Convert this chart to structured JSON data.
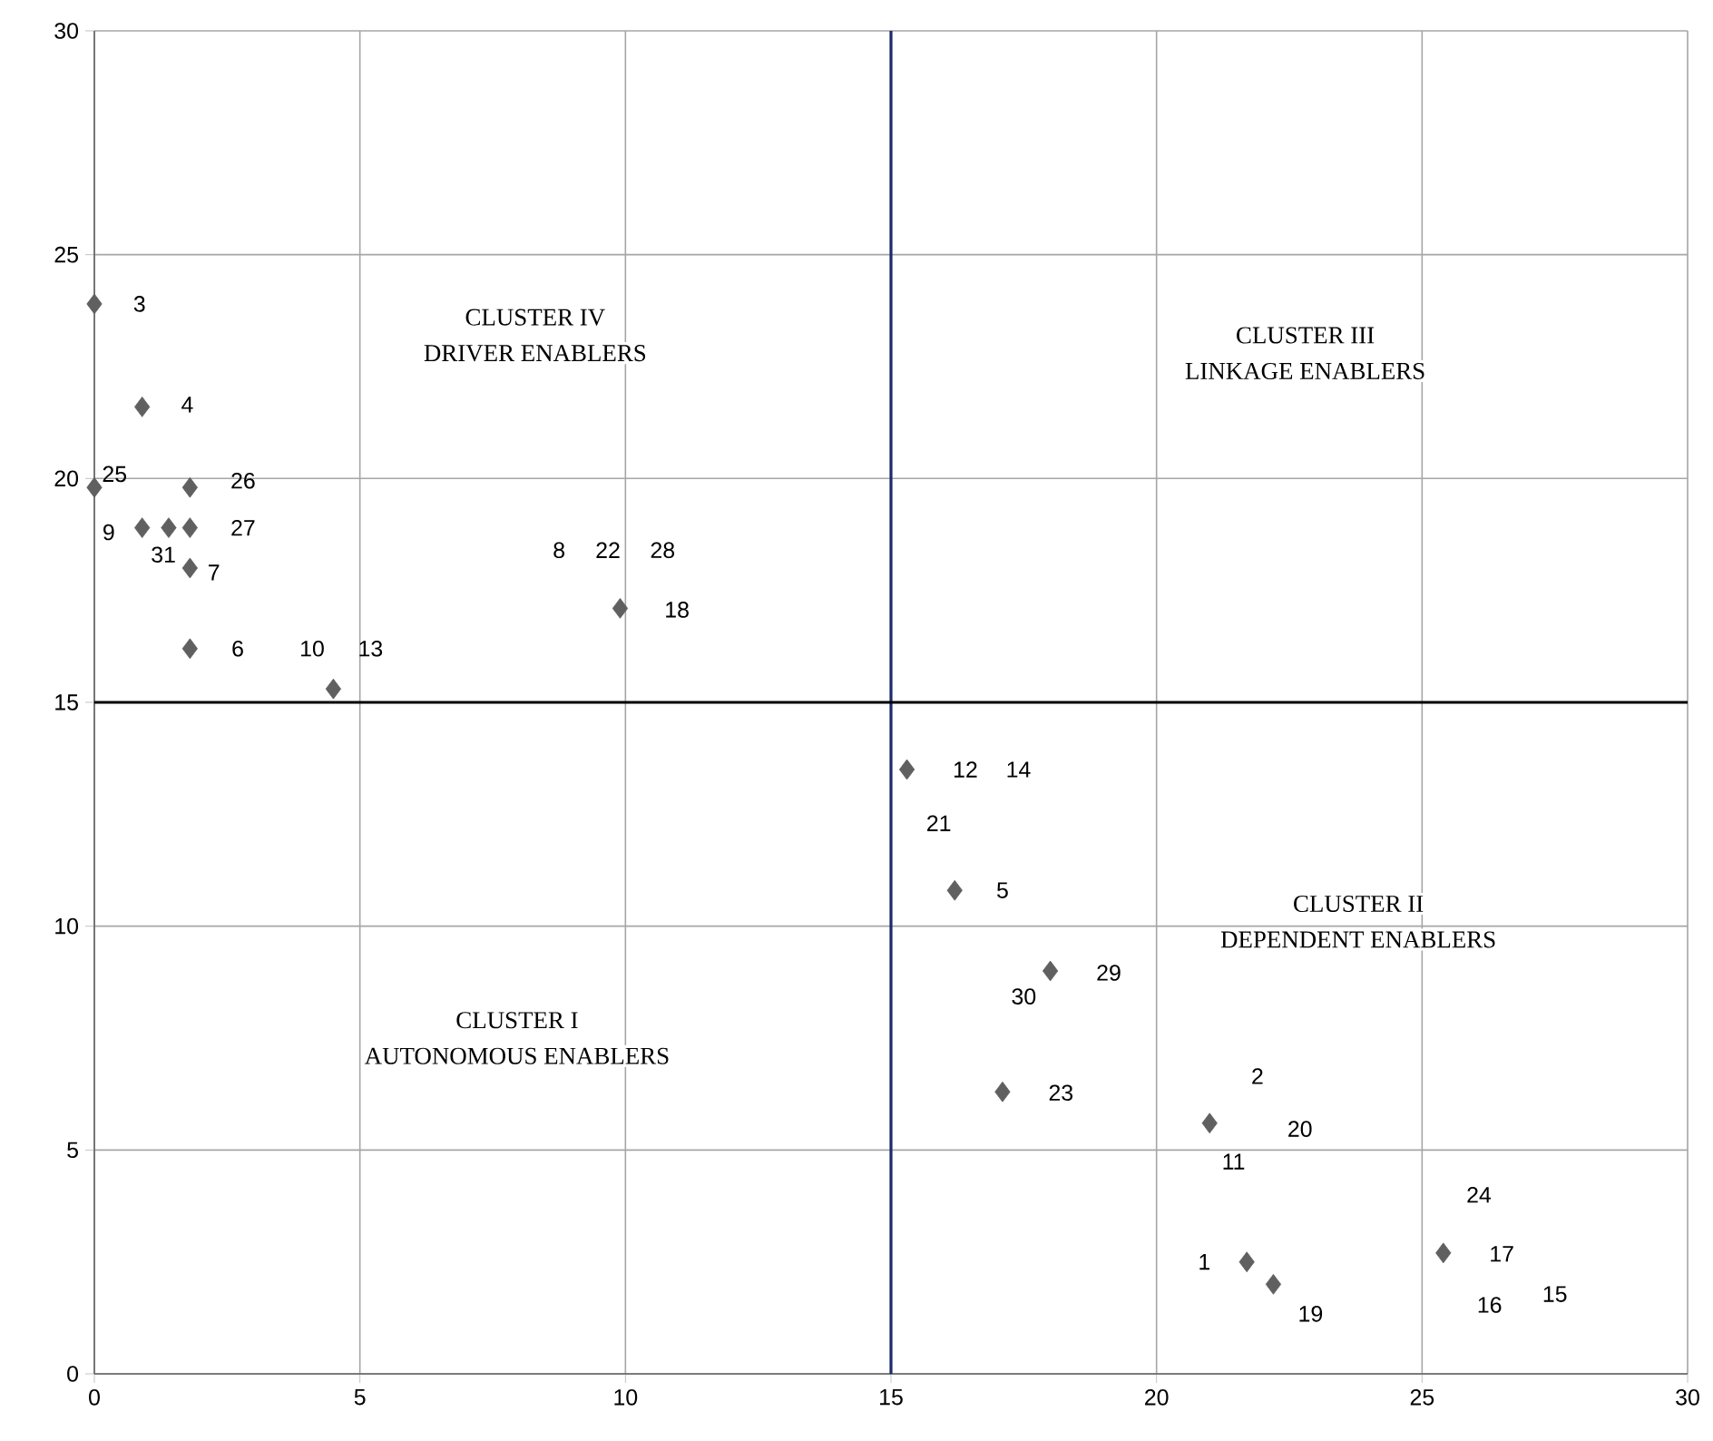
{
  "chart_data": {
    "type": "scatter",
    "x": [
      0,
      0.9,
      0,
      1.8,
      0.9,
      1.4,
      1.8,
      1.8,
      1.8,
      4.5,
      9.9,
      15.3,
      16.2,
      18.0,
      17.1,
      21.0,
      25.4,
      21.7,
      22.2
    ],
    "series": [
      {
        "color": "#606060",
        "values": [
          23.9,
          21.6,
          19.8,
          19.8,
          18.9,
          18.9,
          18.9,
          18.0,
          16.2,
          15.3,
          17.1,
          13.5,
          10.8,
          9.0,
          6.3,
          5.6,
          2.7,
          2.5,
          2.0
        ]
      }
    ],
    "marker": "diamond",
    "xlim": [
      0,
      30
    ],
    "ylim": [
      0,
      30
    ],
    "xticks": [
      0,
      5,
      10,
      15,
      20,
      25,
      30
    ],
    "yticks": [
      0,
      5,
      10,
      15,
      20,
      25,
      30
    ],
    "grid": true,
    "ref_lines": [
      {
        "axis": "x",
        "value": 15,
        "color": "#1a2a6c"
      },
      {
        "axis": "y",
        "value": 15,
        "color": "#000000"
      }
    ],
    "annotations": [
      "CLUSTER IV",
      "DRIVER ENABLERS",
      "CLUSTER III",
      "LINKAGE ENABLERS",
      "CLUSTER II",
      "DEPENDENT ENABLERS",
      "CLUSTER I",
      "AUTONOMOUS ENABLERS",
      "3",
      "4",
      "25",
      "26",
      "9",
      "31",
      "27",
      "7",
      "6",
      "10",
      "13",
      "8",
      "22",
      "28",
      "18",
      "12",
      "14",
      "21",
      "5",
      "29",
      "30",
      "23",
      "2",
      "20",
      "11",
      "24",
      "17",
      "16",
      "15",
      "1",
      "19"
    ]
  }
}
